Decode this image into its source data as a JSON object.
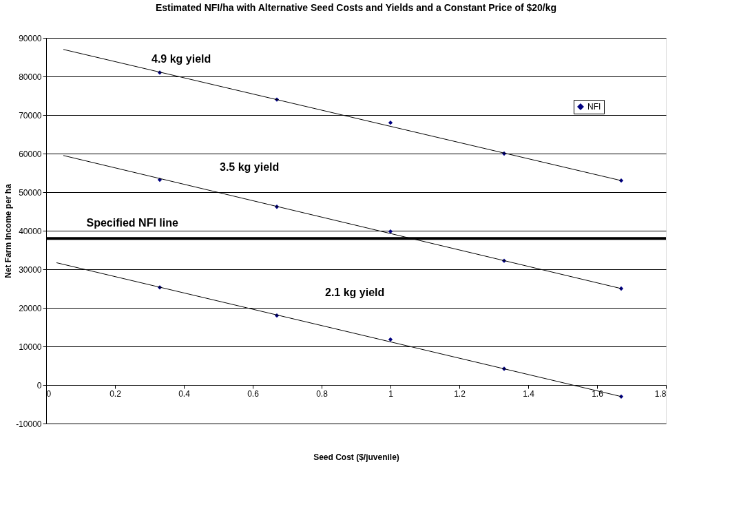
{
  "chart_data": {
    "type": "scatter",
    "title": "Estimated NFI/ha with Alternative Seed Costs and Yields and a Constant Price of $20/kg",
    "xlabel": "Seed Cost ($/juvenile)",
    "ylabel": "Net Farm Income per ha",
    "xlim": [
      0,
      1.8
    ],
    "xticks": [
      0,
      0.2,
      0.4,
      0.6,
      0.8,
      1,
      1.2,
      1.4,
      1.6,
      1.8
    ],
    "ylim": [
      -10000,
      90000
    ],
    "yticks": [
      -10000,
      0,
      10000,
      20000,
      30000,
      40000,
      50000,
      60000,
      70000,
      80000,
      90000
    ],
    "grid": "y",
    "legend": "top right",
    "marker": "diamond",
    "series": [
      {
        "name": "NFI",
        "color": "#000080",
        "x": [
          0.33,
          0.67,
          1.0,
          1.33,
          1.67,
          0.33,
          0.67,
          1.0,
          1.33,
          1.67,
          0.33,
          0.67,
          1.0,
          1.33,
          1.67
        ],
        "values": [
          81000,
          74000,
          68000,
          60000,
          53000,
          53200,
          46200,
          39800,
          32200,
          25000,
          25300,
          18000,
          11800,
          4200,
          -3000
        ]
      },
      {
        "type": "line",
        "color": "#000000",
        "line_style": "solid",
        "marker": "none",
        "x": [
          0.05,
          1.67
        ],
        "values": [
          87000,
          53000
        ]
      },
      {
        "type": "line",
        "color": "#000000",
        "line_style": "solid",
        "marker": "none",
        "x": [
          0.05,
          1.67
        ],
        "values": [
          59500,
          25000
        ]
      },
      {
        "type": "line",
        "color": "#000000",
        "line_style": "solid",
        "marker": "none",
        "x": [
          0.03,
          1.67
        ],
        "values": [
          31700,
          -3000
        ]
      }
    ],
    "ref_lines": [
      {
        "axis": "y",
        "value": 38000,
        "color": "#000000"
      }
    ],
    "annotations": [
      "4.9 kg yield",
      "3.5 kg yield",
      "Specified NFI line",
      "2.1 kg yield"
    ]
  }
}
